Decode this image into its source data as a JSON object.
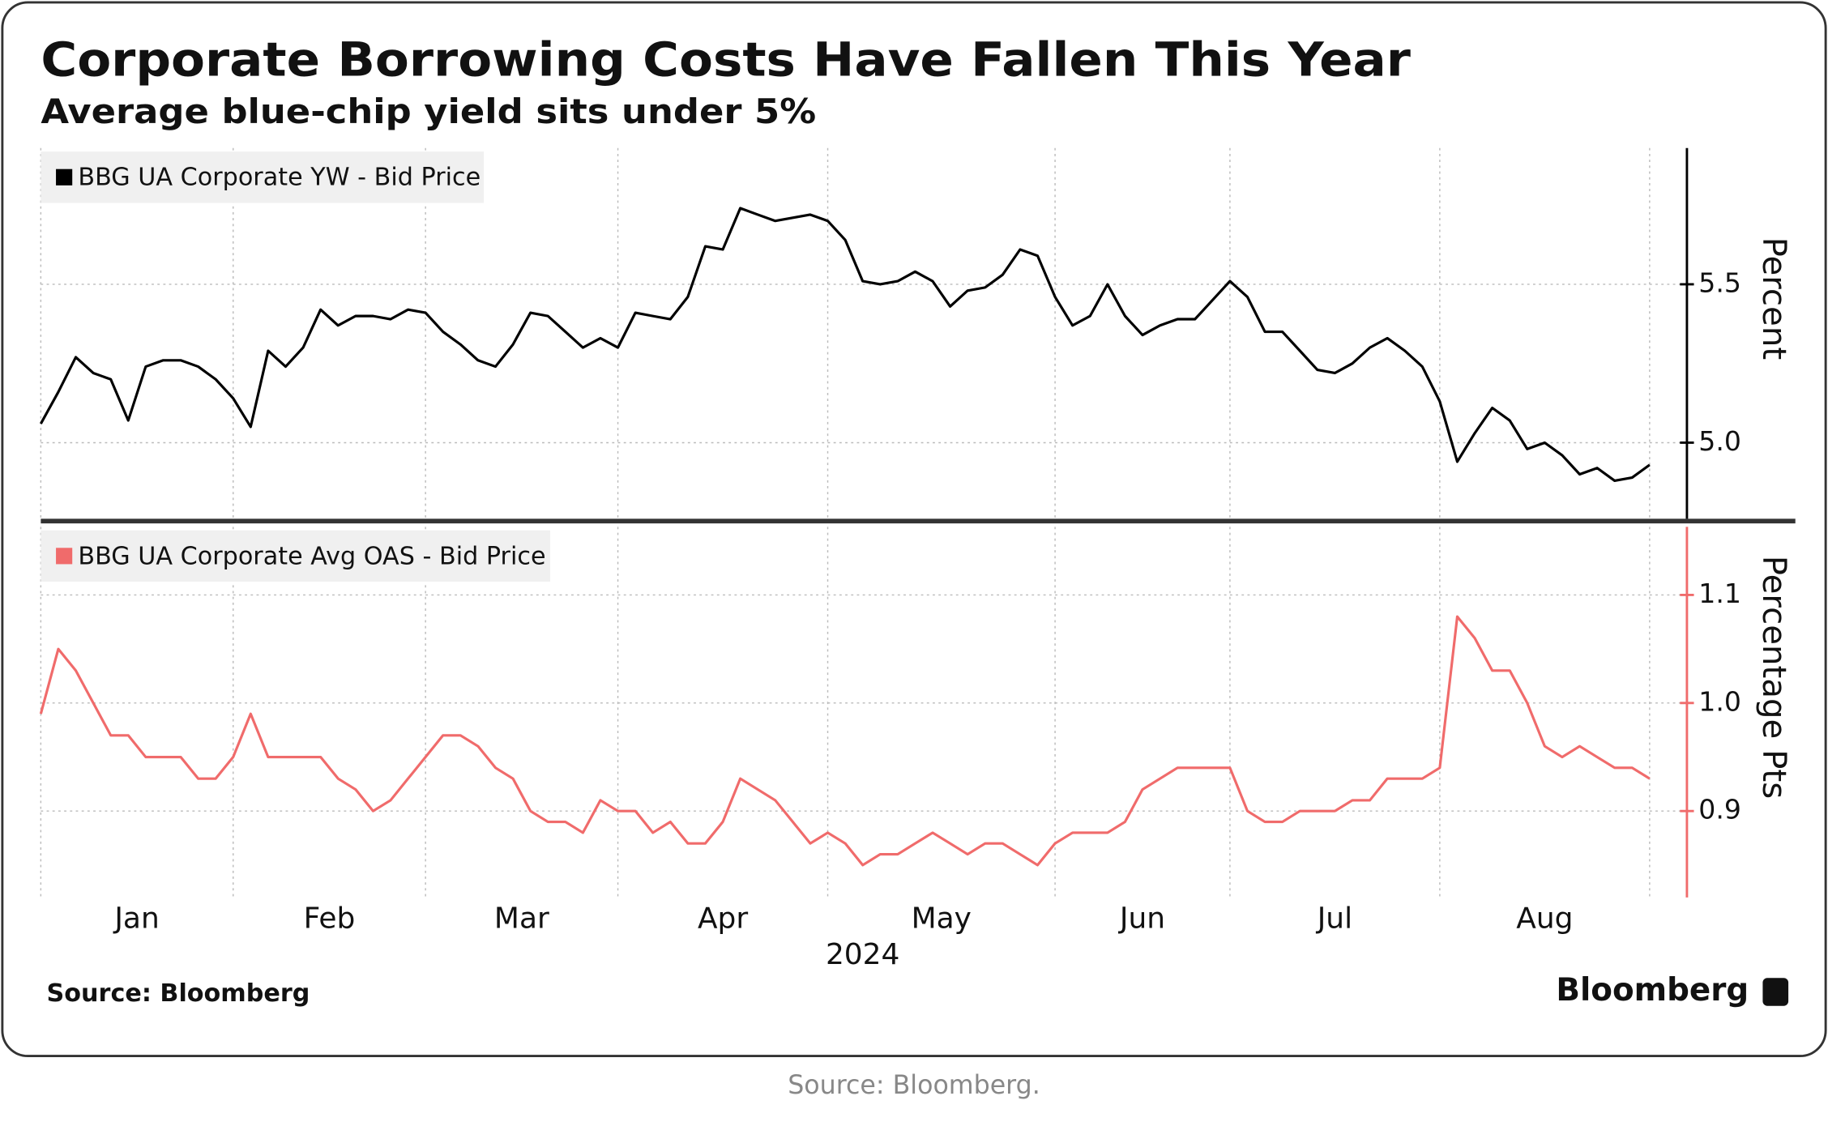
{
  "title": "Corporate Borrowing Costs Have Fallen This Year",
  "subtitle": "Average blue-chip yield sits under 5%",
  "source": "Source: Bloomberg",
  "brand": "Bloomberg",
  "caption": "Source:  Bloomberg.",
  "chart_data": [
    {
      "type": "line",
      "ylabel": "Percent",
      "ylim": [
        4.76,
        5.93
      ],
      "yticks": [
        {
          "value": 5,
          "label": "5.0"
        },
        5.5
      ],
      "grid": true,
      "series": [
        {
          "name": "BBG UA Corporate YW - Bid Price",
          "color": "#000000",
          "values": [
            5.06,
            5.16,
            5.27,
            5.22,
            5.2,
            5.07,
            5.24,
            5.26,
            5.26,
            5.24,
            5.2,
            5.14,
            5.05,
            5.29,
            5.24,
            5.3,
            5.42,
            5.37,
            5.4,
            5.4,
            5.39,
            5.42,
            5.41,
            5.35,
            5.31,
            5.26,
            5.24,
            5.31,
            5.41,
            5.4,
            5.35,
            5.3,
            5.33,
            5.3,
            5.41,
            5.4,
            5.39,
            5.46,
            5.62,
            5.61,
            5.74,
            5.72,
            5.7,
            5.71,
            5.72,
            5.7,
            5.64,
            5.51,
            5.5,
            5.51,
            5.54,
            5.51,
            5.43,
            5.48,
            5.49,
            5.53,
            5.61,
            5.59,
            5.46,
            5.37,
            5.4,
            5.5,
            5.4,
            5.34,
            5.37,
            5.39,
            5.39,
            5.45,
            5.51,
            5.46,
            5.35,
            5.35,
            5.29,
            5.23,
            5.22,
            5.25,
            5.3,
            5.33,
            5.29,
            5.24,
            5.13,
            4.94,
            5.03,
            5.11,
            5.07,
            4.98,
            5.0,
            4.96,
            4.9,
            4.92,
            4.88,
            4.89,
            4.93
          ]
        }
      ]
    },
    {
      "type": "line",
      "ylabel": "Percentage Pts",
      "xlabel": "2024",
      "categories": [
        "Jan",
        null,
        null,
        null,
        null,
        null,
        null,
        null,
        null,
        null,
        null,
        "Feb",
        null,
        null,
        null,
        null,
        null,
        null,
        null,
        null,
        null,
        null,
        "Mar",
        null,
        null,
        null,
        null,
        null,
        null,
        null,
        null,
        null,
        null,
        "Apr",
        null,
        null,
        null,
        null,
        null,
        null,
        null,
        null,
        null,
        null,
        null,
        "May",
        null,
        null,
        null,
        null,
        null,
        null,
        null,
        null,
        null,
        null,
        null,
        null,
        "Jun",
        null,
        null,
        null,
        null,
        null,
        null,
        null,
        null,
        null,
        "Jul",
        null,
        null,
        null,
        null,
        null,
        null,
        null,
        null,
        null,
        null,
        null,
        "Aug",
        null,
        null,
        null,
        null,
        null,
        null,
        null,
        null,
        null,
        null,
        null,
        null
      ],
      "ylim": [
        0.82,
        1.163
      ],
      "yticks": [
        0.9,
        {
          "value": 1,
          "label": "1.0"
        },
        1.1
      ],
      "grid": true,
      "series": [
        {
          "name": "BBG UA Corporate Avg OAS - Bid Price",
          "color": "#f06b6b",
          "values": [
            0.99,
            1.05,
            1.03,
            1.0,
            0.97,
            0.97,
            0.95,
            0.95,
            0.95,
            0.93,
            0.93,
            0.95,
            0.99,
            0.95,
            0.95,
            0.95,
            0.95,
            0.93,
            0.92,
            0.9,
            0.91,
            0.93,
            0.95,
            0.97,
            0.97,
            0.96,
            0.94,
            0.93,
            0.9,
            0.89,
            0.89,
            0.88,
            0.91,
            0.9,
            0.9,
            0.88,
            0.89,
            0.87,
            0.87,
            0.89,
            0.93,
            0.92,
            0.91,
            0.89,
            0.87,
            0.88,
            0.87,
            0.85,
            0.86,
            0.86,
            0.87,
            0.88,
            0.87,
            0.86,
            0.87,
            0.87,
            0.86,
            0.85,
            0.87,
            0.88,
            0.88,
            0.88,
            0.89,
            0.92,
            0.93,
            0.94,
            0.94,
            0.94,
            0.94,
            0.9,
            0.89,
            0.89,
            0.9,
            0.9,
            0.9,
            0.91,
            0.91,
            0.93,
            0.93,
            0.93,
            0.94,
            1.08,
            1.06,
            1.03,
            1.03,
            1.0,
            0.96,
            0.95,
            0.96,
            0.95,
            0.94,
            0.94,
            0.93
          ]
        }
      ]
    }
  ]
}
